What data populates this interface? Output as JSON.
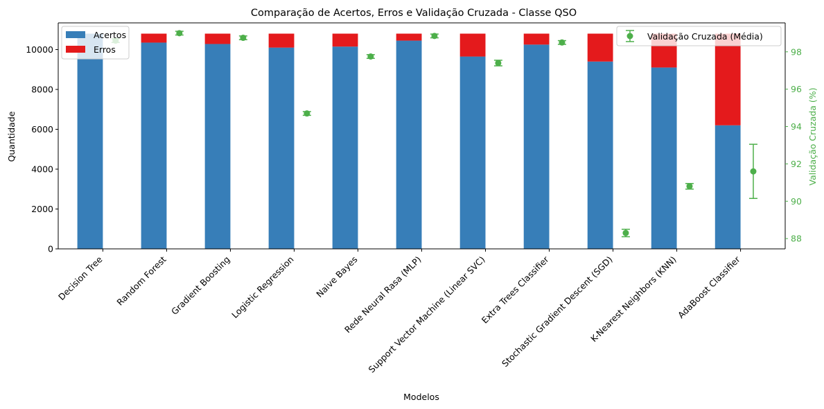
{
  "chart_data": {
    "type": "bar",
    "title": "Comparação de Acertos, Erros e Validação Cruzada - Classe QSO",
    "xlabel": "Modelos",
    "ylabel": "Quantidade",
    "y2label": "Validação Cruzada (%)",
    "categories": [
      "Decision Tree",
      "Random Forest",
      "Gradient Boosting",
      "Logistic Regression",
      "Naive Bayes",
      "Rede Neural Rasa (MLP)",
      "Support Vector Machine (Linear SVC)",
      "Extra Trees Classifier",
      "Stochastic Gradient Descent (SGD)",
      "K-Nearest Neighbors (KNN)",
      "AdaBoost Classifier"
    ],
    "series": [
      {
        "name": "Acertos",
        "color": "#377eb8",
        "values": [
          10800,
          10350,
          10280,
          10100,
          10150,
          10450,
          9650,
          10250,
          9400,
          9100,
          6200
        ]
      },
      {
        "name": "Erros",
        "color": "#e41a1c",
        "values": [
          0,
          450,
          520,
          700,
          650,
          350,
          1150,
          550,
          1400,
          1700,
          4600
        ]
      }
    ],
    "cv_series": {
      "name": "Validação Cruzada (Média)",
      "color": "#4daf4a",
      "values": [
        98.6,
        99.0,
        98.75,
        94.7,
        97.75,
        98.85,
        97.4,
        98.5,
        88.3,
        90.8,
        91.6
      ],
      "errors": [
        0.1,
        0.1,
        0.1,
        0.1,
        0.1,
        0.1,
        0.15,
        0.1,
        0.2,
        0.15,
        1.45
      ]
    },
    "ylim": [
      0,
      11340
    ],
    "yticks": [
      0,
      2000,
      4000,
      6000,
      8000,
      10000
    ],
    "y2lim": [
      87.45,
      99.55
    ],
    "y2ticks": [
      88,
      90,
      92,
      94,
      96,
      98
    ],
    "legend_left": "upper-left",
    "legend_right": "upper-right",
    "grid": false
  }
}
